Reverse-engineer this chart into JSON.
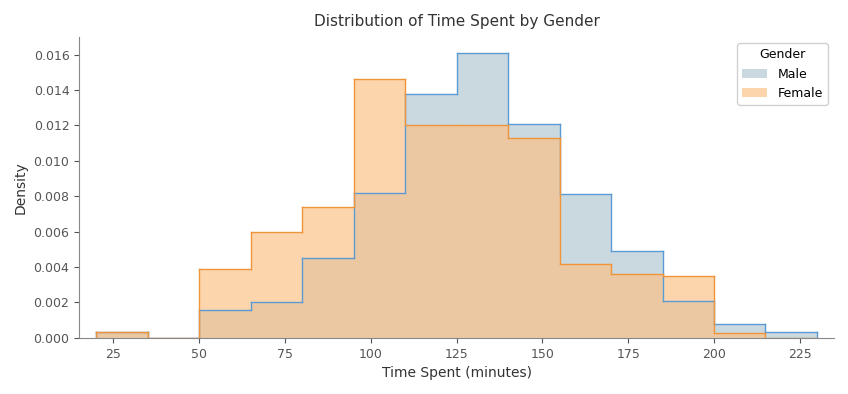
{
  "title": "Distribution of Time Spent by Gender",
  "xlabel": "Time Spent (minutes)",
  "ylabel": "Density",
  "legend_title": "Gender",
  "male_color": "#AEC6CF",
  "male_edge_color": "#5B9BD5",
  "female_color": "#FDBF82",
  "female_edge_color": "#F0943A",
  "male_alpha": 0.65,
  "female_alpha": 0.65,
  "bin_edges": [
    20,
    35,
    50,
    65,
    80,
    95,
    110,
    125,
    140,
    155,
    170,
    185,
    200,
    215,
    230
  ],
  "male_density": [
    0.00035,
    0.0,
    0.0016,
    0.002,
    0.0045,
    0.0082,
    0.0138,
    0.0161,
    0.0121,
    0.0081,
    0.0049,
    0.0021,
    0.0008,
    0.00035
  ],
  "female_density": [
    0.00035,
    0.0,
    0.0039,
    0.006,
    0.0074,
    0.0146,
    0.012,
    0.012,
    0.0113,
    0.0042,
    0.0036,
    0.0035,
    0.00025,
    0.0
  ],
  "xlim": [
    15,
    235
  ],
  "ylim": [
    0,
    0.017
  ],
  "xticks": [
    50,
    100,
    150,
    200
  ],
  "figsize": [
    8.48,
    3.94
  ],
  "dpi": 100
}
